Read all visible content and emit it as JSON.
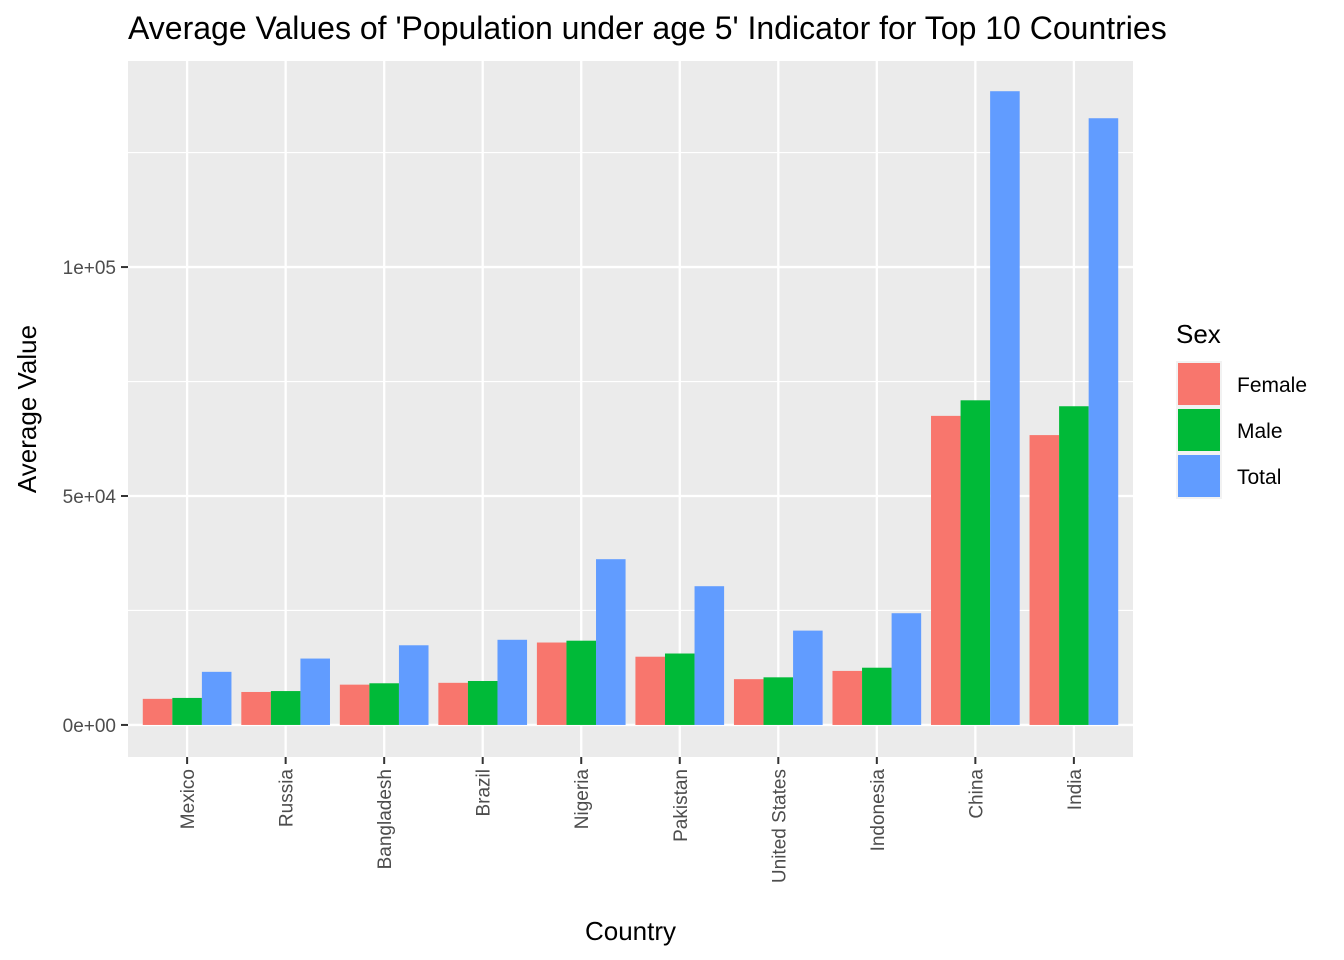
{
  "chart_data": {
    "type": "bar",
    "title": "Average Values of 'Population under age 5' Indicator for Top 10 Countries",
    "xlabel": "Country",
    "ylabel": "Average Value",
    "categories": [
      "Mexico",
      "Russia",
      "Bangladesh",
      "Brazil",
      "Nigeria",
      "Pakistan",
      "United States",
      "Indonesia",
      "China",
      "India"
    ],
    "series": [
      {
        "name": "Female",
        "color": "#F8766D",
        "values": [
          5700,
          7200,
          8800,
          9200,
          18000,
          14900,
          10000,
          11800,
          67500,
          63300
        ]
      },
      {
        "name": "Male",
        "color": "#00BA38",
        "values": [
          5900,
          7400,
          9100,
          9600,
          18400,
          15600,
          10400,
          12500,
          70900,
          69600
        ]
      },
      {
        "name": "Total",
        "color": "#619CFF",
        "values": [
          11600,
          14500,
          17400,
          18600,
          36200,
          30300,
          20600,
          24400,
          138400,
          132500
        ]
      }
    ],
    "ylim": [
      -7000,
      145000
    ],
    "yticks": [
      0,
      50000,
      100000
    ],
    "ytick_labels": [
      "0e+00",
      "5e+04",
      "1e+05"
    ],
    "y_minor_ticks": [
      25000,
      75000,
      125000
    ],
    "grid": true,
    "legend": {
      "title": "Sex",
      "position": "right"
    }
  }
}
